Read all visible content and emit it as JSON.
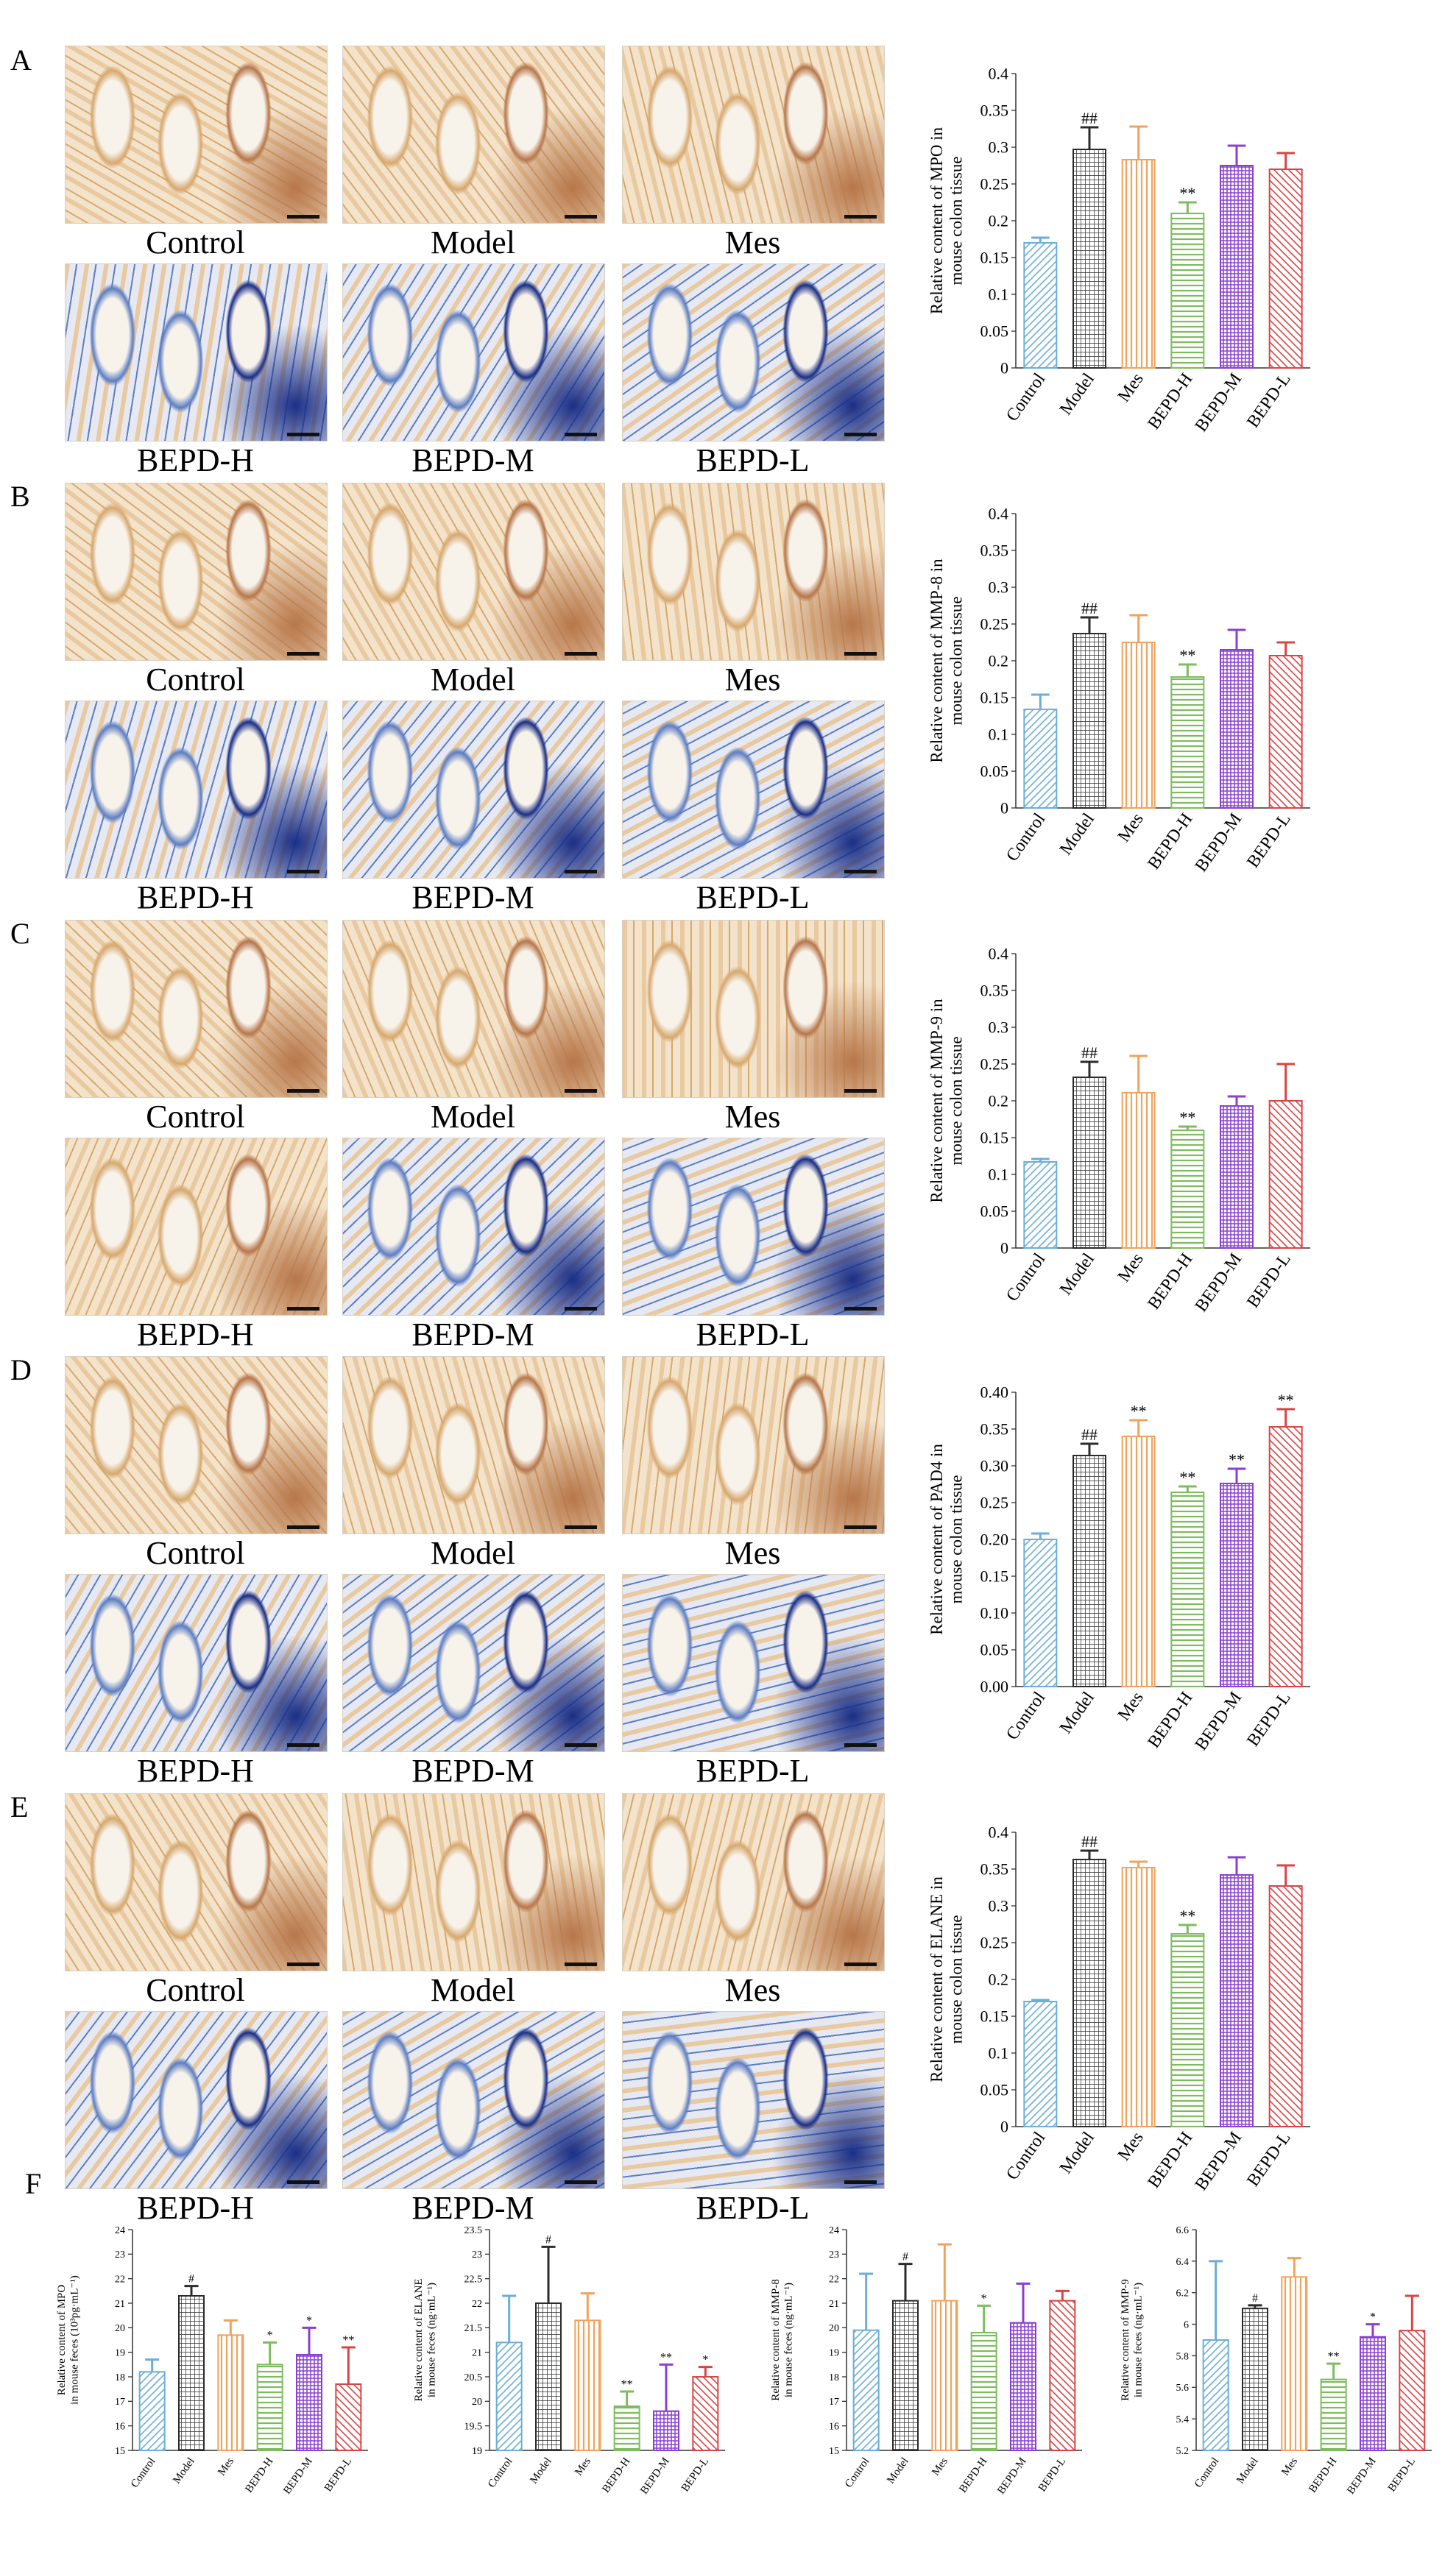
{
  "panel_letters": [
    "A",
    "B",
    "C",
    "D",
    "E",
    "F"
  ],
  "image_labels": [
    "Control",
    "Model",
    "Mes",
    "BEPD-H",
    "BEPD-M",
    "BEPD-L"
  ],
  "stain_palettes": {
    "brown": [
      "#f3e3cb",
      "#e9c99f",
      "#d7a86e",
      "#c08954",
      "#b7774a"
    ],
    "blue": [
      "#dfe6f2",
      "#9fb3d8",
      "#5e7ec2",
      "#2f4fa3",
      "#1b2f86"
    ]
  },
  "bar_colors": [
    "#6baed6",
    "#2b2b2b",
    "#f0a35e",
    "#7dbd5e",
    "#8a3fd1",
    "#d94545"
  ],
  "sig_colors": {
    "model": "#2b2b2b",
    "treat": "#7dbd5e",
    "mes": "#f0a35e",
    "purple": "#8a3fd1",
    "red": "#d94545"
  },
  "chart_data": [
    {
      "type": "bar",
      "id": "A",
      "categories": [
        "Control",
        "Model",
        "Mes",
        "BEPD-H",
        "BEPD-M",
        "BEPD-L"
      ],
      "values": [
        0.17,
        0.297,
        0.283,
        0.21,
        0.275,
        0.27
      ],
      "errors": [
        0.007,
        0.03,
        0.045,
        0.015,
        0.027,
        0.022
      ],
      "annotations": [
        "",
        "##",
        "",
        "**",
        "",
        ""
      ],
      "ylabel": [
        "Relative content of MPO in",
        "mouse colon tissue"
      ],
      "ylim": [
        0,
        0.4
      ],
      "yticks": [
        "0",
        "0.05",
        "0.1",
        "0.15",
        "0.2",
        "0.25",
        "0.3",
        "0.35",
        "0.4"
      ]
    },
    {
      "type": "bar",
      "id": "B",
      "categories": [
        "Control",
        "Model",
        "Mes",
        "BEPD-H",
        "BEPD-M",
        "BEPD-L"
      ],
      "values": [
        0.134,
        0.237,
        0.225,
        0.178,
        0.215,
        0.207
      ],
      "errors": [
        0.02,
        0.022,
        0.037,
        0.017,
        0.027,
        0.018
      ],
      "annotations": [
        "",
        "##",
        "",
        "**",
        "",
        ""
      ],
      "ylabel": [
        "Relative content of MMP-8 in",
        "mouse colon tissue"
      ],
      "ylim": [
        0,
        0.4
      ],
      "yticks": [
        "0",
        "0.05",
        "0.1",
        "0.15",
        "0.2",
        "0.25",
        "0.3",
        "0.35",
        "0.4"
      ]
    },
    {
      "type": "bar",
      "id": "C",
      "categories": [
        "Control",
        "Model",
        "Mes",
        "BEPD-H",
        "BEPD-M",
        "BEPD-L"
      ],
      "values": [
        0.117,
        0.232,
        0.211,
        0.16,
        0.193,
        0.2
      ],
      "errors": [
        0.004,
        0.021,
        0.05,
        0.005,
        0.013,
        0.05
      ],
      "annotations": [
        "",
        "##",
        "",
        "**",
        "",
        ""
      ],
      "ylabel": [
        "Relative content of MMP-9 in",
        "mouse colon tissue"
      ],
      "ylim": [
        0,
        0.4
      ],
      "yticks": [
        "0",
        "0.05",
        "0.1",
        "0.15",
        "0.2",
        "0.25",
        "0.3",
        "0.35",
        "0.4"
      ]
    },
    {
      "type": "bar",
      "id": "D",
      "categories": [
        "Control",
        "Model",
        "Mes",
        "BEPD-H",
        "BEPD-M",
        "BEPD-L"
      ],
      "values": [
        0.2,
        0.314,
        0.34,
        0.264,
        0.276,
        0.353
      ],
      "errors": [
        0.008,
        0.016,
        0.022,
        0.008,
        0.02,
        0.024
      ],
      "annotations": [
        "",
        "##",
        "**",
        "**",
        "**",
        "**"
      ],
      "ylabel": [
        "Relative content of PAD4 in",
        "mouse colon tissue"
      ],
      "ylim": [
        0,
        0.4
      ],
      "yticks": [
        "0.00",
        "0.05",
        "0.10",
        "0.15",
        "0.20",
        "0.25",
        "0.30",
        "0.35",
        "0.40"
      ]
    },
    {
      "type": "bar",
      "id": "E",
      "categories": [
        "Control",
        "Model",
        "Mes",
        "BEPD-H",
        "BEPD-M",
        "BEPD-L"
      ],
      "values": [
        0.17,
        0.363,
        0.352,
        0.262,
        0.342,
        0.327
      ],
      "errors": [
        0.002,
        0.012,
        0.008,
        0.012,
        0.024,
        0.028
      ],
      "annotations": [
        "",
        "##",
        "",
        "**",
        "",
        ""
      ],
      "ylabel": [
        "Relative content of ELANE in",
        "mouse colon tissue"
      ],
      "ylim": [
        0,
        0.4
      ],
      "yticks": [
        "0",
        "0.05",
        "0.1",
        "0.15",
        "0.2",
        "0.25",
        "0.3",
        "0.35",
        "0.4"
      ]
    },
    {
      "type": "bar",
      "id": "F1",
      "categories": [
        "Control",
        "Model",
        "Mes",
        "BEPD-H",
        "BEPD-M",
        "BEPD-L"
      ],
      "values": [
        18.2,
        21.3,
        19.7,
        18.5,
        18.9,
        17.7
      ],
      "errors": [
        0.5,
        0.4,
        0.6,
        0.9,
        1.1,
        1.5
      ],
      "annotations": [
        "",
        "#",
        "",
        "*",
        "*",
        "**"
      ],
      "ylabel": [
        "Relative content of MPO",
        "in mouse feces (10³pg·mL⁻¹)"
      ],
      "ylim": [
        15,
        24
      ],
      "yticks": [
        "15",
        "16",
        "17",
        "18",
        "19",
        "20",
        "21",
        "22",
        "23",
        "24"
      ]
    },
    {
      "type": "bar",
      "id": "F2",
      "categories": [
        "Control",
        "Model",
        "Mes",
        "BEPD-H",
        "BEPD-M",
        "BEPD-L"
      ],
      "values": [
        21.2,
        22.0,
        21.65,
        19.9,
        19.8,
        20.5
      ],
      "errors": [
        0.95,
        1.15,
        0.55,
        0.3,
        0.95,
        0.2
      ],
      "annotations": [
        "",
        "#",
        "",
        "**",
        "**",
        "*"
      ],
      "ylabel": [
        "Relative content of ELANE",
        "in mouse feces (ng·mL⁻¹)"
      ],
      "ylim": [
        19,
        23.5
      ],
      "yticks": [
        "19",
        "19.5",
        "20",
        "20.5",
        "21",
        "21.5",
        "22",
        "22.5",
        "23",
        "23.5"
      ]
    },
    {
      "type": "bar",
      "id": "F3",
      "categories": [
        "Control",
        "Model",
        "Mes",
        "BEPD-H",
        "BEPD-M",
        "BEPD-L"
      ],
      "values": [
        19.9,
        21.1,
        21.1,
        19.8,
        20.2,
        21.1
      ],
      "errors": [
        2.3,
        1.5,
        2.3,
        1.1,
        1.6,
        0.4
      ],
      "annotations": [
        "",
        "#",
        "",
        "*",
        "",
        ""
      ],
      "ylabel": [
        "Relative content of MMP-8",
        "in mouse feces (ng·mL⁻¹)"
      ],
      "ylim": [
        15,
        24
      ],
      "yticks": [
        "15",
        "16",
        "17",
        "18",
        "19",
        "20",
        "21",
        "22",
        "23",
        "24"
      ]
    },
    {
      "type": "bar",
      "id": "F4",
      "categories": [
        "Control",
        "Model",
        "Mes",
        "BEPD-H",
        "BEPD-M",
        "BEPD-L"
      ],
      "values": [
        5.9,
        6.1,
        6.3,
        5.65,
        5.92,
        5.96
      ],
      "errors": [
        0.5,
        0.02,
        0.12,
        0.1,
        0.08,
        0.22
      ],
      "annotations": [
        "",
        "#",
        "",
        "**",
        "*",
        ""
      ],
      "ylabel": [
        "Relative content of MMP-9",
        "in mouse feces (ng·mL⁻¹)"
      ],
      "ylim": [
        5.2,
        6.6
      ],
      "yticks": [
        "5.2",
        "5.4",
        "5.6",
        "5.8",
        "6",
        "6.2",
        "6.4",
        "6.6"
      ]
    }
  ]
}
